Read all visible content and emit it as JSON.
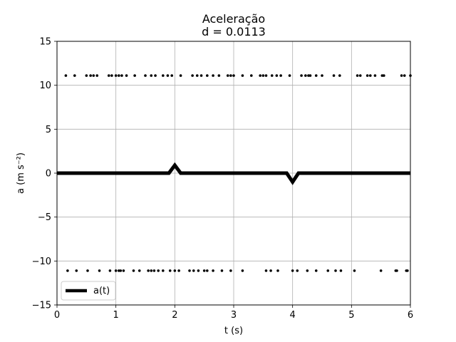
{
  "chart_data": {
    "type": "line",
    "title": "Aceleração",
    "subtitle": "d = 0.0113",
    "xlabel": "t (s)",
    "ylabel": "a (m s⁻²)",
    "xlim": [
      0,
      6
    ],
    "ylim": [
      -15,
      15
    ],
    "xticks": [
      0,
      1,
      2,
      3,
      4,
      5,
      6
    ],
    "yticks": [
      -15,
      -10,
      -5,
      0,
      5,
      10,
      15
    ],
    "grid": true,
    "legend_position": "lower-left",
    "colors": {
      "line": "#000000",
      "markers": "#000000",
      "grid": "#b0b0b0"
    },
    "series": [
      {
        "name": "a(t)",
        "style": "thick-line",
        "x": [
          0,
          1.9,
          2.0,
          2.1,
          3.9,
          4.0,
          4.1,
          6.0
        ],
        "y": [
          0,
          0,
          0.9,
          0,
          0,
          -1.0,
          0,
          0
        ]
      },
      {
        "style": "markers",
        "x": [
          0.15,
          0.3,
          0.5,
          0.57,
          0.62,
          0.68,
          0.88,
          0.93,
          1.0,
          1.05,
          1.1,
          1.18,
          1.32,
          1.5,
          1.6,
          1.67,
          1.8,
          1.88,
          1.95,
          2.1,
          2.3,
          2.38,
          2.45,
          2.55,
          2.65,
          2.75,
          2.9,
          2.95,
          3.0,
          3.15,
          3.3,
          3.45,
          3.5,
          3.55,
          3.65,
          3.73,
          3.8,
          3.95,
          4.15,
          4.22,
          4.27,
          4.3,
          4.4,
          4.5,
          4.7,
          4.8,
          5.1,
          5.15,
          5.27,
          5.32,
          5.4,
          5.52,
          5.55,
          5.85,
          5.9,
          6.0
        ],
        "y_level": 11.1
      },
      {
        "style": "markers",
        "x": [
          0.18,
          0.33,
          0.52,
          0.72,
          0.9,
          1.0,
          1.05,
          1.08,
          1.13,
          1.3,
          1.4,
          1.55,
          1.6,
          1.65,
          1.72,
          1.8,
          1.92,
          2.0,
          2.07,
          2.25,
          2.32,
          2.4,
          2.5,
          2.55,
          2.65,
          2.8,
          2.95,
          3.15,
          3.55,
          3.63,
          3.75,
          4.0,
          4.08,
          4.25,
          4.4,
          4.6,
          4.73,
          4.82,
          5.05,
          5.5,
          5.75,
          5.77,
          5.93,
          5.95
        ],
        "y_level": -11.1
      }
    ]
  }
}
